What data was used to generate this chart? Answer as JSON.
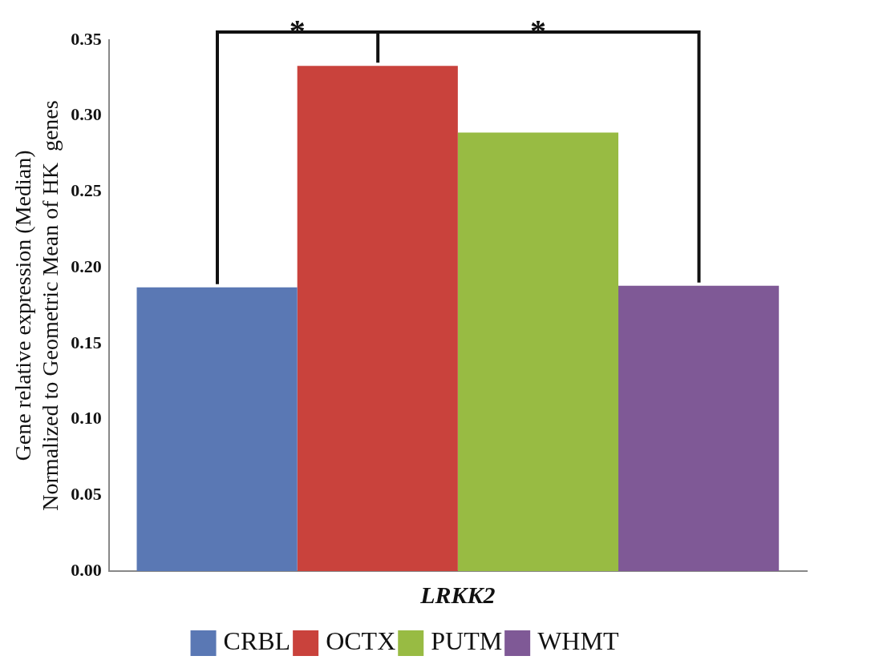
{
  "chart_data": {
    "type": "bar",
    "ylabel": "Gene relative expression (Median)\nNormalized to Geometric Mean of HK  genes",
    "categories": [
      "LRKK2"
    ],
    "series": [
      {
        "name": "CRBL",
        "color": "#5a78b4",
        "values": [
          0.187
        ]
      },
      {
        "name": "OCTX",
        "color": "#c9423c",
        "values": [
          0.333
        ]
      },
      {
        "name": "PUTM",
        "color": "#98bb43",
        "values": [
          0.289
        ]
      },
      {
        "name": "WHMT",
        "color": "#7f5996",
        "values": [
          0.188
        ]
      }
    ],
    "ylim": [
      0,
      0.35
    ],
    "yticks": [
      {
        "value": 0,
        "label": "0.00"
      },
      {
        "value": 0.05,
        "label": "0.05"
      },
      {
        "value": 0.1,
        "label": "0.10"
      },
      {
        "value": 0.15,
        "label": "0.15"
      },
      {
        "value": 0.2,
        "label": "0.20"
      },
      {
        "value": 0.25,
        "label": "0.25"
      },
      {
        "value": 0.3,
        "label": "0.30"
      },
      {
        "value": 0.35,
        "label": "0.35"
      }
    ],
    "grid": false,
    "legend": "bottom",
    "annotations": [
      "*",
      "*"
    ]
  }
}
